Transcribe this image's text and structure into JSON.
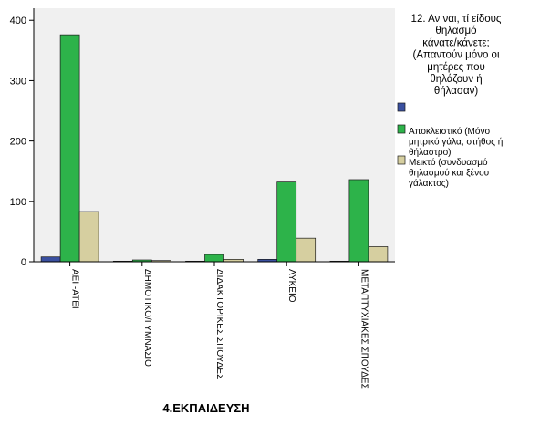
{
  "chart_data": {
    "type": "bar",
    "xlabel": "4.ΕΚΠΑΙΔΕΥΣΗ",
    "ylabel": "",
    "ylim": [
      0,
      420
    ],
    "yticks": [
      0,
      100,
      200,
      300,
      400
    ],
    "grid": false,
    "legend_position": "right",
    "legend_title": "12. Αν ναι, τί είδους θηλασμό κάνατε/κάνετε; (Απαντούν μόνο οι μητέρες που θηλάζουν ή θήλασαν)",
    "categories": [
      "ΑΕΙ -ΑΤΕΙ",
      "ΔΗΜΟΤΙΚΟ/ΓΥΜΝΑΣΙΟ",
      "ΔΙΔΑΚΤΟΡΙΚΕΣ ΣΠΟΥΔΕΣ",
      "ΛΥΚΕΙΟ",
      "ΜΕΤΑΠΤΥΧΙΑΚΕΣ ΣΠΟΥΔΕΣ"
    ],
    "series": [
      {
        "name": "",
        "color": "#3a50a0",
        "values": [
          8,
          1,
          1,
          4,
          1
        ]
      },
      {
        "name": "Αποκλειστικό (Μόνο μητρικό γάλα, στήθος ή θήλαστρο)",
        "color": "#2db34a",
        "values": [
          376,
          3,
          12,
          132,
          136
        ]
      },
      {
        "name": "Μεικτό (συνδυασμό θηλασμού και ξένου γάλακτος)",
        "color": "#d6cfa0",
        "values": [
          83,
          2,
          4,
          39,
          25
        ]
      }
    ]
  }
}
